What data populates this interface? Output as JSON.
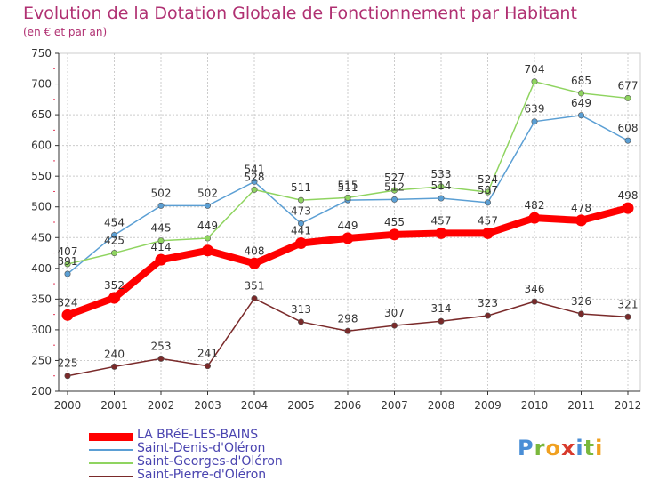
{
  "header": {
    "title": "Evolution de la Dotation Globale de Fonctionnement par Habitant",
    "subtitle": "(en € et par an)"
  },
  "logo": {
    "text": "Proxiti",
    "letters": [
      {
        "char": "P",
        "color": "#4a8ed6"
      },
      {
        "char": "r",
        "color": "#7ab83c"
      },
      {
        "char": "o",
        "color": "#f0a020"
      },
      {
        "char": "x",
        "color": "#d83a2c"
      },
      {
        "char": "i",
        "color": "#4a8ed6"
      },
      {
        "char": "t",
        "color": "#7ab83c"
      },
      {
        "char": "i",
        "color": "#f0a020"
      }
    ]
  },
  "colors": {
    "axis": "#333333",
    "grid": "#cccccc",
    "minor_tick": "#e33a5a",
    "label": "#333333"
  },
  "chart_data": {
    "type": "line",
    "title": "Evolution de la Dotation Globale de Fonctionnement par Habitant",
    "subtitle": "(en € et par an)",
    "x": [
      2000,
      2001,
      2002,
      2003,
      2004,
      2005,
      2006,
      2007,
      2008,
      2009,
      2010,
      2011,
      2012
    ],
    "ylim": [
      200,
      750
    ],
    "yticks": [
      200,
      250,
      300,
      350,
      400,
      450,
      500,
      550,
      600,
      650,
      700,
      750
    ],
    "grid": true,
    "legend_position": "bottom-left",
    "series": [
      {
        "name": "LA BRéE-LES-BAINS",
        "color": "#ff0000",
        "emphasis": true,
        "values": [
          324,
          352,
          414,
          429,
          408,
          441,
          449,
          455,
          457,
          457,
          482,
          478,
          498
        ],
        "labels": [
          "324",
          "352",
          "414",
          "",
          "408",
          "441",
          "449",
          "455",
          "457",
          "457",
          "482",
          "478",
          "498"
        ]
      },
      {
        "name": "Saint-Denis-d'Oléron",
        "color": "#5b9fd4",
        "emphasis": false,
        "values": [
          391,
          454,
          502,
          502,
          541,
          473,
          511,
          512,
          514,
          507,
          639,
          649,
          608
        ],
        "labels": [
          "391",
          "454",
          "502",
          "502",
          "541",
          "473",
          "511",
          "512",
          "514",
          "507",
          "639",
          "649",
          "608"
        ]
      },
      {
        "name": "Saint-Georges-d'Oléron",
        "color": "#8fd460",
        "emphasis": false,
        "values": [
          407,
          425,
          445,
          449,
          528,
          511,
          515,
          527,
          533,
          524,
          704,
          685,
          677
        ],
        "labels": [
          "407",
          "425",
          "445",
          "449",
          "528",
          "511",
          "515",
          "527",
          "533",
          "524",
          "704",
          "685",
          "677"
        ]
      },
      {
        "name": "Saint-Pierre-d'Oléron",
        "color": "#7a2a2a",
        "emphasis": false,
        "values": [
          225,
          240,
          253,
          241,
          351,
          313,
          298,
          307,
          314,
          323,
          346,
          326,
          321
        ],
        "labels": [
          "225",
          "240",
          "253",
          "241",
          "351",
          "313",
          "298",
          "307",
          "314",
          "323",
          "346",
          "326",
          "321"
        ]
      }
    ],
    "legend_order": [
      0,
      1,
      2,
      3
    ]
  }
}
